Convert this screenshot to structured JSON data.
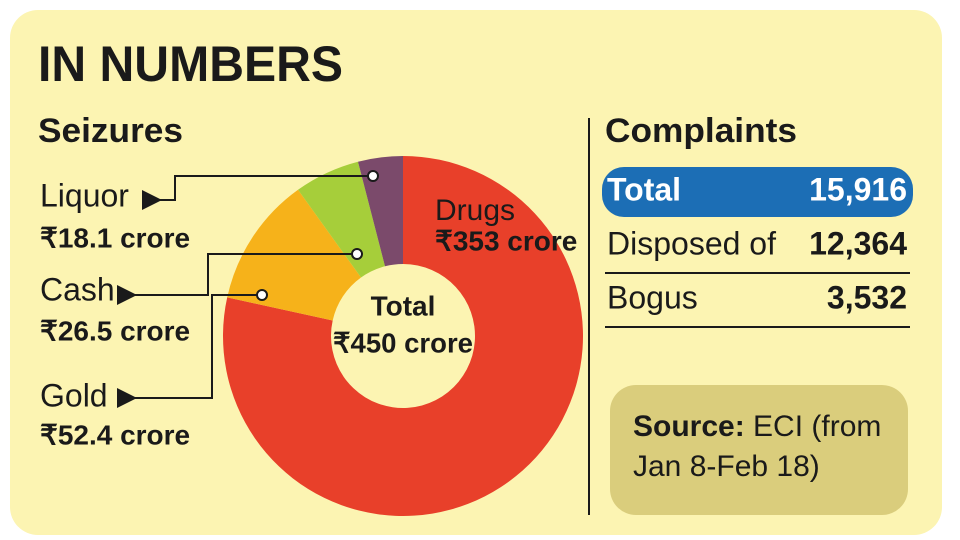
{
  "title": "IN NUMBERS",
  "chart_data": {
    "type": "pie",
    "title": "Seizures",
    "categories": [
      "Drugs",
      "Gold",
      "Cash",
      "Liquor"
    ],
    "values": [
      353,
      52.4,
      26.5,
      18.1
    ],
    "value_labels": [
      "₹353 crore",
      "₹52.4 crore",
      "₹26.5 crore",
      "₹18.1 crore"
    ],
    "colors": [
      "#e8402a",
      "#f6b21a",
      "#a6ce3a",
      "#7b4a6b"
    ],
    "center_label": [
      "Total",
      "₹450 crore"
    ]
  },
  "complaints": {
    "title": "Complaints",
    "rows": [
      [
        "Total",
        "15,916"
      ],
      [
        "Disposed of",
        "12,364"
      ],
      [
        "Bogus",
        "3,532"
      ]
    ]
  },
  "source": {
    "label": "Source:",
    "lines": [
      "ECI (from",
      "Jan 8-Feb 18)"
    ]
  }
}
